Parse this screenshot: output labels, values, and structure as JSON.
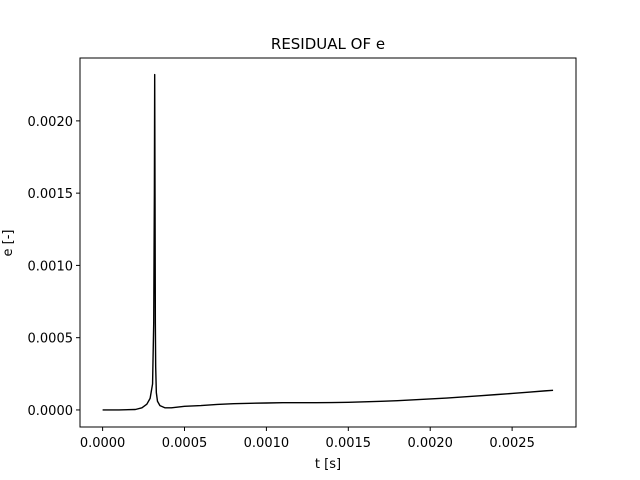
{
  "chart_data": {
    "type": "line",
    "title": "RESIDUAL OF e",
    "xlabel": "t [s]",
    "ylabel": "e [-]",
    "xlim": [
      -0.000138,
      0.00289
    ],
    "ylim": [
      -0.000118,
      0.002435
    ],
    "xticks": [
      {
        "value": 0.0,
        "label": "0.0000"
      },
      {
        "value": 0.0005,
        "label": "0.0005"
      },
      {
        "value": 0.001,
        "label": "0.0010"
      },
      {
        "value": 0.0015,
        "label": "0.0015"
      },
      {
        "value": 0.002,
        "label": "0.0020"
      },
      {
        "value": 0.0025,
        "label": "0.0025"
      }
    ],
    "yticks": [
      {
        "value": 0.0,
        "label": "0.0000"
      },
      {
        "value": 0.0005,
        "label": "0.0005"
      },
      {
        "value": 0.001,
        "label": "0.0010"
      },
      {
        "value": 0.0015,
        "label": "0.0015"
      },
      {
        "value": 0.002,
        "label": "0.0020"
      }
    ],
    "grid": false,
    "series": [
      {
        "color": "#000000",
        "x": [
          0.0,
          0.0001,
          0.0002,
          0.00024,
          0.00027,
          0.00029,
          0.000305,
          0.000312,
          0.000316,
          0.000318,
          0.00032,
          0.000322,
          0.000324,
          0.000328,
          0.000335,
          0.00035,
          0.00038,
          0.00042,
          0.0005,
          0.0006,
          0.0007,
          0.0008,
          0.0009,
          0.001,
          0.0011,
          0.0012,
          0.0013,
          0.0014,
          0.0015,
          0.0016,
          0.0017,
          0.0018,
          0.0019,
          0.002,
          0.0021,
          0.0022,
          0.0023,
          0.0024,
          0.0025,
          0.0026,
          0.0027,
          0.00275
        ],
        "y": [
          0.0,
          0.0,
          3e-06,
          1.5e-05,
          4e-05,
          8e-05,
          0.00018,
          0.0006,
          0.0015,
          0.00232,
          0.0015,
          0.0006,
          0.0003,
          0.00012,
          6e-05,
          3e-05,
          1.5e-05,
          1.5e-05,
          2.5e-05,
          3e-05,
          3.8e-05,
          4.3e-05,
          4.6e-05,
          4.8e-05,
          5e-05,
          5e-05,
          5e-05,
          5.1e-05,
          5.3e-05,
          5.6e-05,
          6e-05,
          6.4e-05,
          7e-05,
          7.6e-05,
          8.2e-05,
          9e-05,
          9.8e-05,
          0.000106,
          0.000114,
          0.000123,
          0.000132,
          0.000136
        ]
      }
    ]
  }
}
